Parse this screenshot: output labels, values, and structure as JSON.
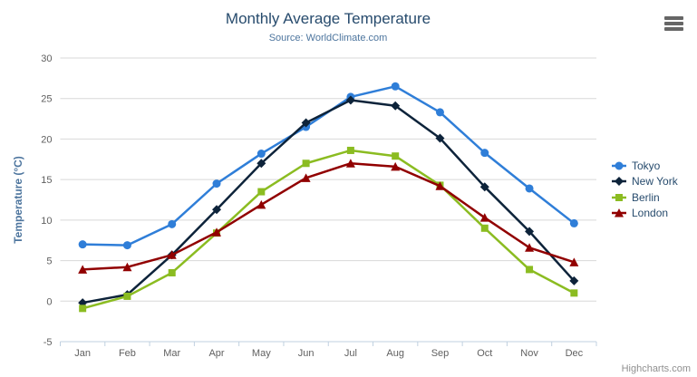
{
  "chart_data": {
    "type": "line",
    "title": "Monthly Average Temperature",
    "subtitle": "Source: WorldClimate.com",
    "xlabel": "",
    "ylabel": "Temperature (°C)",
    "ylim": [
      -5,
      30
    ],
    "ytick_step": 5,
    "grid": true,
    "legend_position": "right",
    "categories": [
      "Jan",
      "Feb",
      "Mar",
      "Apr",
      "May",
      "Jun",
      "Jul",
      "Aug",
      "Sep",
      "Oct",
      "Nov",
      "Dec"
    ],
    "series": [
      {
        "name": "Tokyo",
        "color": "#2f7ed8",
        "marker": "circle",
        "values": [
          7.0,
          6.9,
          9.5,
          14.5,
          18.2,
          21.5,
          25.2,
          26.5,
          23.3,
          18.3,
          13.9,
          9.6
        ]
      },
      {
        "name": "New York",
        "color": "#0d233a",
        "marker": "diamond",
        "values": [
          -0.2,
          0.8,
          5.7,
          11.3,
          17.0,
          22.0,
          24.8,
          24.1,
          20.1,
          14.1,
          8.6,
          2.5
        ]
      },
      {
        "name": "Berlin",
        "color": "#8bbc21",
        "marker": "square",
        "values": [
          -0.9,
          0.6,
          3.5,
          8.4,
          13.5,
          17.0,
          18.6,
          17.9,
          14.3,
          9.0,
          3.9,
          1.0
        ]
      },
      {
        "name": "London",
        "color": "#910000",
        "marker": "triangle",
        "values": [
          3.9,
          4.2,
          5.7,
          8.5,
          11.9,
          15.2,
          17.0,
          16.6,
          14.2,
          10.3,
          6.6,
          4.8
        ]
      }
    ]
  },
  "credits": {
    "label": "Highcharts.com"
  },
  "menu_icon": "hamburger-menu-icon",
  "colors": {
    "title": "#274b6d",
    "subtitle": "#4d759e",
    "legend": "#274b6d",
    "axis_label": "#606060",
    "axis_title": "#4d759e",
    "grid": "#d8d8d8",
    "axis_line": "#c0d0e0",
    "credits": "#909090",
    "menu": "#666666"
  }
}
